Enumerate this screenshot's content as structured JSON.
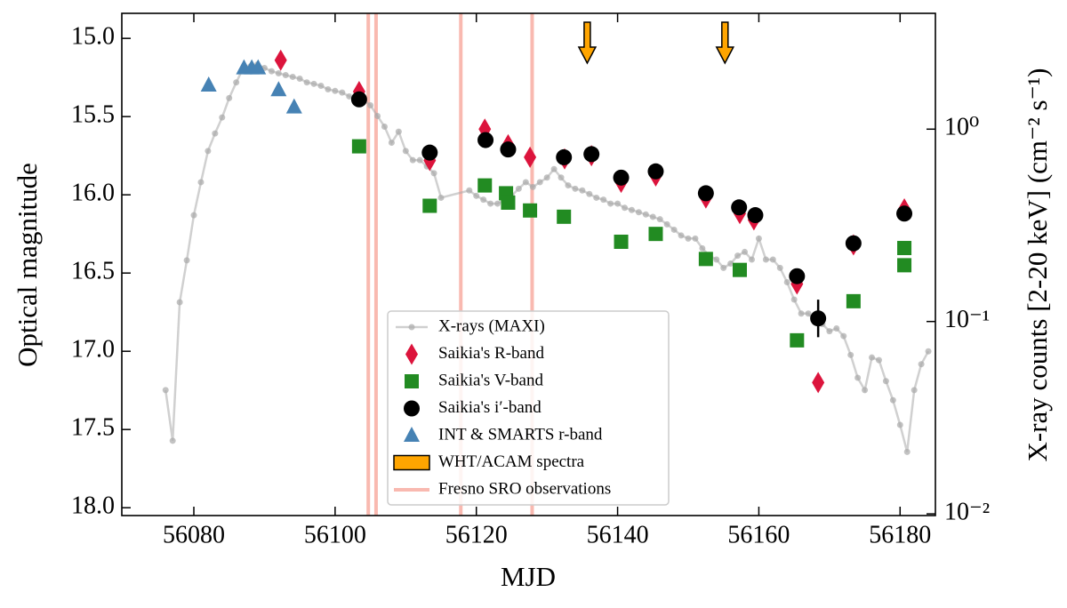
{
  "chart_data": {
    "type": "scatter",
    "xlabel": "MJD",
    "ylabel": "Optical magnitude",
    "y2label": "X-ray counts [2-20 keV] (cm⁻² s⁻¹)",
    "xlim": [
      56069.8,
      56185
    ],
    "ylim": [
      14.84,
      18.05
    ],
    "y_inverted": true,
    "y2lim": [
      0.0098,
      4.0
    ],
    "y2_log": true,
    "xticks": [
      56080,
      56100,
      56120,
      56140,
      56160,
      56180
    ],
    "yticks": [
      {
        "value": 15,
        "label": "15.0"
      },
      15.5,
      {
        "value": 16,
        "label": "16.0"
      },
      16.5,
      {
        "value": 17,
        "label": "17.0"
      },
      17.5,
      {
        "value": 18,
        "label": "18.0"
      }
    ],
    "y2ticks": [
      {
        "value": 0.01,
        "label": "10⁻²"
      },
      {
        "value": 0.1,
        "label": "10⁻¹"
      },
      {
        "value": 1,
        "label": "10⁰"
      }
    ],
    "legend": "lower center",
    "series": [
      {
        "name": "X-rays (MAXI)",
        "kind": "line",
        "axis": "y2",
        "color": "#a9a9a9",
        "x": [
          56076,
          56077,
          56078,
          56079,
          56080,
          56081,
          56082,
          56083,
          56084,
          56085,
          56086,
          56087,
          56088,
          56089,
          56090,
          56091,
          56092,
          56093,
          56094,
          56095,
          56096,
          56097,
          56098,
          56099,
          56100,
          56101,
          56102,
          56103,
          56104,
          56105,
          56106,
          56107,
          56108,
          56109,
          56110,
          56111,
          56112,
          56113,
          56114,
          56115,
          56119,
          56120,
          56121,
          56122,
          56123,
          56124,
          56125,
          56126,
          56127,
          56128,
          56129,
          56130,
          56131,
          56132,
          56133,
          56134,
          56135,
          56136,
          56137,
          56138,
          56139,
          56140,
          56141,
          56142,
          56143,
          56144,
          56145,
          56146,
          56147,
          56148,
          56149,
          56150,
          56151,
          56152,
          56153,
          56154,
          56155,
          56156,
          56157,
          56158,
          56159,
          56160,
          56161,
          56162,
          56163,
          56164,
          56165,
          56166,
          56167,
          56168,
          56169,
          56170,
          56171,
          56172,
          56173,
          56174,
          56175,
          56176,
          56177,
          56178,
          56179,
          56180,
          56181,
          56182,
          56183,
          56184
        ],
        "values": [
          0.044,
          0.024,
          0.126,
          0.208,
          0.357,
          0.53,
          0.77,
          0.95,
          1.15,
          1.45,
          1.75,
          2.08,
          2.12,
          2.17,
          2.08,
          2.0,
          1.95,
          1.91,
          1.87,
          1.83,
          1.75,
          1.72,
          1.68,
          1.61,
          1.58,
          1.55,
          1.48,
          1.45,
          1.42,
          1.33,
          1.17,
          1.03,
          0.85,
          0.97,
          0.77,
          0.69,
          0.69,
          0.64,
          0.59,
          0.44,
          0.48,
          0.45,
          0.43,
          0.41,
          0.41,
          0.43,
          0.45,
          0.49,
          0.53,
          0.5,
          0.53,
          0.56,
          0.62,
          0.56,
          0.51,
          0.49,
          0.48,
          0.46,
          0.44,
          0.43,
          0.41,
          0.41,
          0.39,
          0.38,
          0.37,
          0.36,
          0.35,
          0.34,
          0.32,
          0.3,
          0.28,
          0.27,
          0.27,
          0.24,
          0.22,
          0.21,
          0.19,
          0.2,
          0.22,
          0.23,
          0.21,
          0.27,
          0.21,
          0.21,
          0.19,
          0.16,
          0.13,
          0.11,
          0.11,
          0.1,
          0.097,
          0.089,
          0.092,
          0.084,
          0.067,
          0.051,
          0.044,
          0.065,
          0.063,
          0.049,
          0.039,
          0.029,
          0.021,
          0.044,
          0.06,
          0.07
        ]
      },
      {
        "name": "Saikia's R-band",
        "kind": "marker",
        "marker": "diamond",
        "color": "#dc143c",
        "x": [
          56092.3,
          56103.4,
          56113.4,
          56121.2,
          56124.5,
          56127.6,
          56132.5,
          56136.3,
          56140.5,
          56145.4,
          56152.5,
          56157.3,
          56159.3,
          56165.4,
          56168.4,
          56173.4,
          56180.6
        ],
        "values": [
          15.14,
          15.34,
          15.78,
          15.58,
          15.68,
          15.76,
          15.77,
          15.75,
          15.92,
          15.88,
          16.02,
          16.12,
          16.16,
          16.57,
          17.2,
          16.32,
          16.09
        ]
      },
      {
        "name": "Saikia's V-band",
        "kind": "marker",
        "marker": "square",
        "color": "#228b22",
        "x": [
          56103.4,
          56113.4,
          56121.2,
          56124.2,
          56124.5,
          56127.6,
          56132.4,
          56140.5,
          56145.4,
          56152.5,
          56157.3,
          56165.4,
          56173.4,
          56180.6,
          56180.6
        ],
        "values": [
          15.69,
          16.07,
          15.94,
          15.99,
          16.05,
          16.1,
          16.14,
          16.3,
          16.25,
          16.41,
          16.48,
          16.93,
          16.68,
          16.34,
          16.45
        ]
      },
      {
        "name": "Saikia's i′-band",
        "kind": "marker",
        "marker": "circle",
        "color": "#000000",
        "x": [
          56103.4,
          56113.4,
          56121.3,
          56124.5,
          56132.4,
          56136.3,
          56140.5,
          56145.4,
          56152.5,
          56157.2,
          56159.5,
          56165.4,
          56168.4,
          56173.4,
          56180.6
        ],
        "values": [
          15.39,
          15.73,
          15.65,
          15.71,
          15.76,
          15.74,
          15.89,
          15.85,
          15.99,
          16.08,
          16.13,
          16.52,
          16.79,
          16.31,
          16.12
        ],
        "errors": [
          null,
          null,
          null,
          null,
          null,
          null,
          null,
          null,
          null,
          null,
          null,
          null,
          0.12,
          null,
          null
        ]
      },
      {
        "name": "INT & SMARTS r-band",
        "kind": "marker",
        "marker": "triangle",
        "color": "#4682b4",
        "x": [
          56082.1,
          56087.1,
          56088.2,
          56089.1,
          56092.0,
          56094.2
        ],
        "values": [
          15.3,
          15.19,
          15.19,
          15.19,
          15.33,
          15.44
        ]
      },
      {
        "name": "WHT/ACAM spectra",
        "kind": "arrow",
        "color": "#ffa500",
        "x": [
          56135.7,
          56155.2
        ]
      },
      {
        "name": "Fresno SRO observations",
        "kind": "vline",
        "color": "#f9b9b0",
        "x": [
          56104.7,
          56105.8,
          56117.8,
          56127.9
        ]
      }
    ]
  }
}
